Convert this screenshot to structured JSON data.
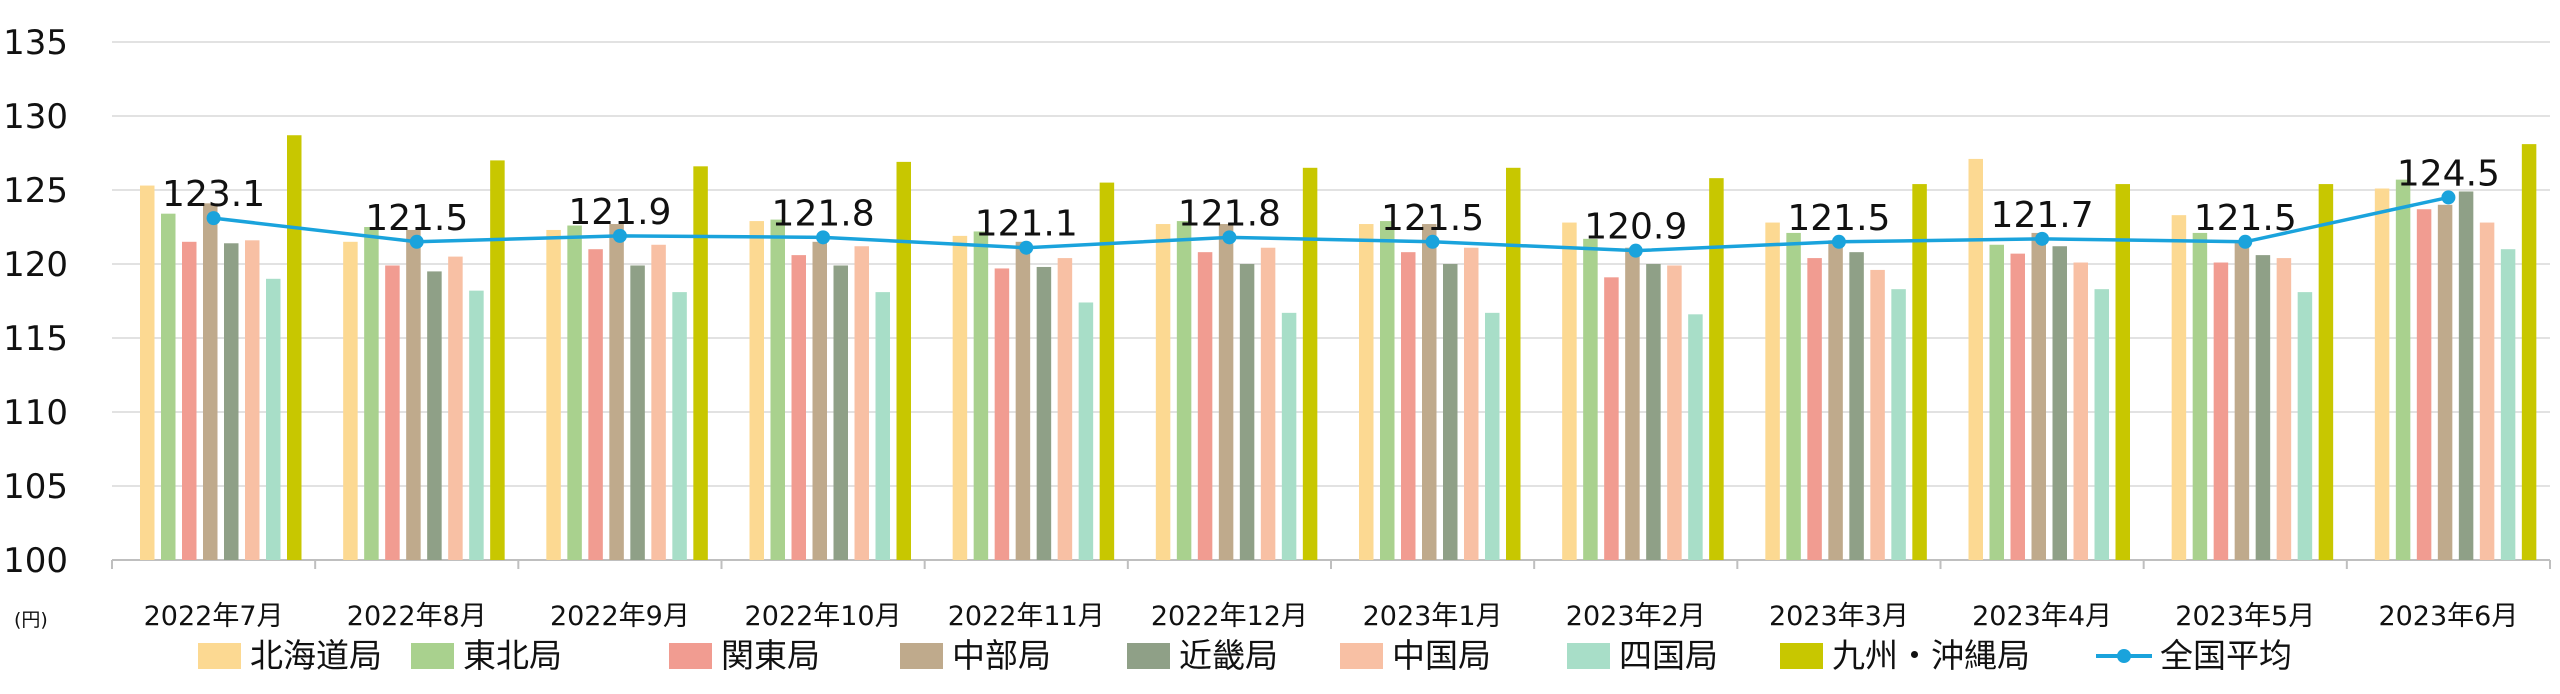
{
  "chart_data": {
    "type": "bar",
    "unit_label": "(円)",
    "categories": [
      "2022年7月",
      "2022年8月",
      "2022年9月",
      "2022年10月",
      "2022年11月",
      "2022年12月",
      "2023年1月",
      "2023年2月",
      "2023年3月",
      "2023年4月",
      "2023年5月",
      "2023年6月"
    ],
    "ylim": [
      100,
      135
    ],
    "yticks": [
      100,
      105,
      110,
      115,
      120,
      125,
      130,
      135
    ],
    "grid": true,
    "legend_position": "bottom",
    "series": [
      {
        "name": "北海道局",
        "color": "#FCD992",
        "values": [
          125.3,
          121.5,
          122.3,
          122.9,
          121.9,
          122.7,
          122.7,
          122.8,
          122.8,
          127.1,
          123.3,
          125.1
        ]
      },
      {
        "name": "東北局",
        "color": "#A9D18E",
        "values": [
          123.4,
          122.5,
          122.6,
          123.0,
          122.2,
          122.9,
          122.9,
          121.7,
          122.1,
          121.3,
          122.1,
          125.7
        ]
      },
      {
        "name": "関東局",
        "color": "#F19C91",
        "values": [
          121.5,
          119.9,
          121.0,
          120.6,
          119.7,
          120.8,
          120.8,
          119.1,
          120.4,
          120.7,
          120.1,
          123.7
        ]
      },
      {
        "name": "中部局",
        "color": "#BFAA8C",
        "values": [
          124.1,
          122.3,
          122.7,
          121.5,
          121.5,
          122.7,
          122.7,
          121.1,
          121.6,
          122.1,
          121.6,
          124.0
        ]
      },
      {
        "name": "近畿局",
        "color": "#8FA087",
        "values": [
          121.4,
          119.5,
          119.9,
          119.9,
          119.8,
          120.0,
          120.0,
          120.0,
          120.8,
          121.2,
          120.6,
          124.9
        ]
      },
      {
        "name": "中国局",
        "color": "#F8C0A4",
        "values": [
          121.6,
          120.5,
          121.3,
          121.2,
          120.4,
          121.1,
          121.1,
          119.9,
          119.6,
          120.1,
          120.4,
          122.8
        ]
      },
      {
        "name": "四国局",
        "color": "#A8DEC8",
        "values": [
          119.0,
          118.2,
          118.1,
          118.1,
          117.4,
          116.7,
          116.7,
          116.6,
          118.3,
          118.3,
          118.1,
          121.0
        ]
      },
      {
        "name": "九州・沖縄局",
        "color": "#C8C700",
        "values": [
          128.7,
          127.0,
          126.6,
          126.9,
          125.5,
          126.5,
          126.5,
          125.8,
          125.4,
          125.4,
          125.4,
          128.1
        ]
      }
    ],
    "line": {
      "name": "全国平均",
      "color": "#1AA3DC",
      "values": [
        123.1,
        121.5,
        121.9,
        121.8,
        121.1,
        121.8,
        121.5,
        120.9,
        121.5,
        121.7,
        121.5,
        124.5
      ],
      "labels": [
        "123.1",
        "121.5",
        "121.9",
        "121.8",
        "121.1",
        "121.8",
        "121.5",
        "120.9",
        "121.5",
        "121.7",
        "121.5",
        "124.5"
      ]
    }
  }
}
